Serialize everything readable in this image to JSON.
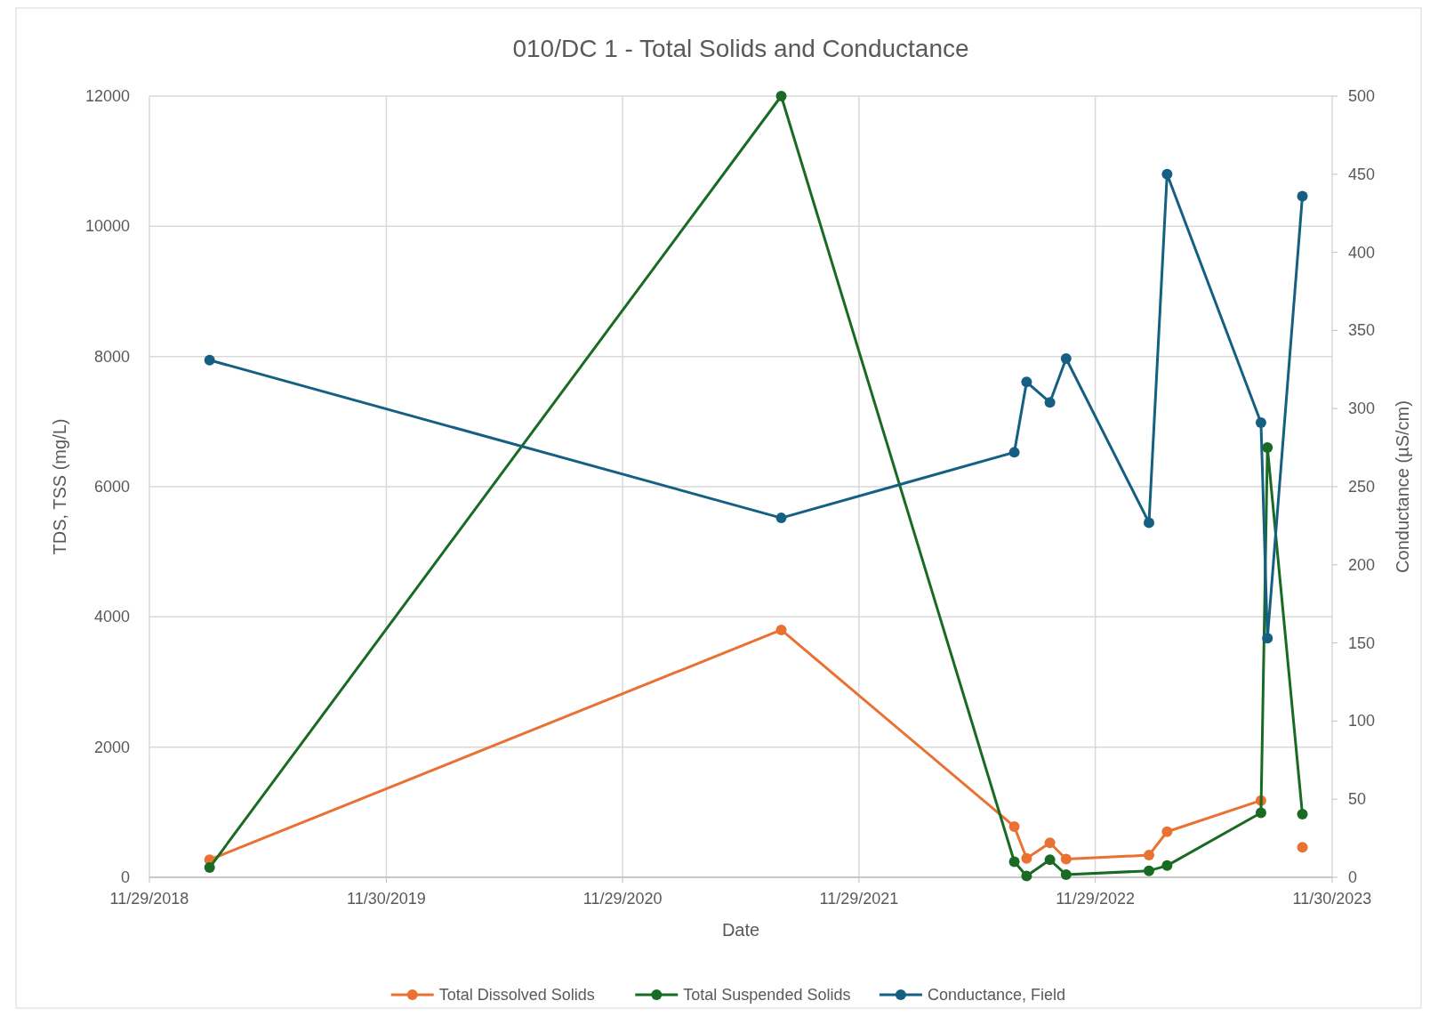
{
  "chart_data": {
    "type": "line",
    "title": "010/DC 1 - Total Solids and Conductance",
    "xlabel": "Date",
    "ylabel": "TDS, TSS (mg/L)",
    "y2label": "Conductance (µS/cm)",
    "x": [
      "2019-03-02",
      "2021-08-01",
      "2022-07-27",
      "2022-08-15",
      "2022-09-20",
      "2022-10-15",
      "2023-02-20",
      "2023-03-20",
      "2023-08-12",
      "2023-08-22",
      "2023-10-15"
    ],
    "series": [
      {
        "name": "Total Dissolved Solids",
        "color": "#e97132",
        "values": [
          270,
          3800,
          780,
          290,
          530,
          280,
          340,
          700,
          1180,
          null,
          460
        ]
      },
      {
        "name": "Total Suspended Solids",
        "color": "#196b24",
        "values": [
          150,
          12000,
          240,
          20,
          270,
          40,
          100,
          180,
          990,
          6600,
          970
        ]
      },
      {
        "name": "Conductance, Field",
        "color": "#156082",
        "axis": "y2",
        "values": [
          331,
          230,
          272,
          317,
          304,
          332,
          227,
          450,
          291,
          153,
          436
        ]
      }
    ],
    "xlim": [
      "2018-11-29",
      "2023-11-30"
    ],
    "xticks": [
      {
        "value": "2018-11-29",
        "label": "11/29/2018"
      },
      {
        "value": "2019-11-30",
        "label": "11/30/2019"
      },
      {
        "value": "2020-11-29",
        "label": "11/29/2020"
      },
      {
        "value": "2021-11-29",
        "label": "11/29/2021"
      },
      {
        "value": "2022-11-29",
        "label": "11/29/2022"
      },
      {
        "value": "2023-11-30",
        "label": "11/30/2023"
      }
    ],
    "ylim": [
      0,
      12000
    ],
    "yticks": [
      0,
      2000,
      4000,
      6000,
      8000,
      10000,
      12000
    ],
    "y2lim": [
      0,
      500
    ],
    "y2ticks": [
      0,
      50,
      100,
      150,
      200,
      250,
      300,
      350,
      400,
      450,
      500
    ],
    "grid": true,
    "legend": "bottom",
    "marker": "circle",
    "line_style": "solid"
  }
}
